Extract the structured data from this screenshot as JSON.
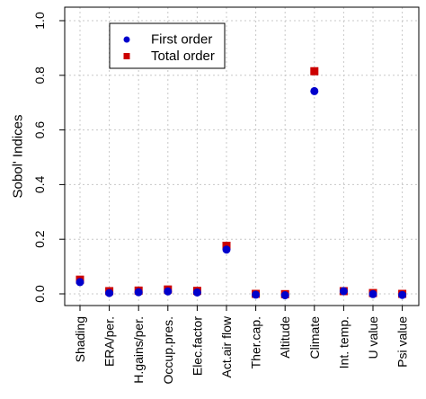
{
  "chart_data": {
    "type": "scatter",
    "title": "",
    "xlabel": "",
    "ylabel": "Sobol' Indices",
    "ylim": [
      0,
      1.0
    ],
    "yticks": [
      "0.0",
      "0.2",
      "0.4",
      "0.6",
      "0.8",
      "1.0"
    ],
    "grid": true,
    "legend_position": "top-left",
    "categories": [
      "Shading",
      "ERA/per.",
      "H.gains/per.",
      "Occup.pres.",
      "Elec.factor",
      "Act.air flow",
      "Ther.cap.",
      "Altitude",
      "Climate",
      "Int. temp.",
      "U value",
      "Psi value"
    ],
    "series": [
      {
        "name": "First order",
        "marker": "circle",
        "color": "#0000cc",
        "values": [
          0.043,
          0.003,
          0.006,
          0.009,
          0.005,
          0.162,
          -0.003,
          -0.005,
          0.742,
          0.01,
          -0.001,
          -0.004
        ]
      },
      {
        "name": "Total order",
        "marker": "square",
        "color": "#cc0000",
        "values": [
          0.052,
          0.01,
          0.012,
          0.016,
          0.011,
          0.176,
          0.0,
          -0.001,
          0.815,
          0.01,
          0.003,
          0.0
        ]
      }
    ]
  }
}
